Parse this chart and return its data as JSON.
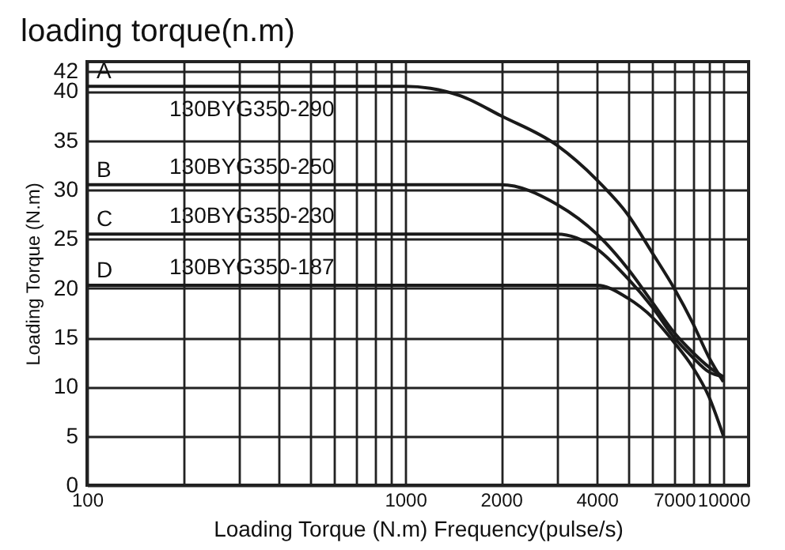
{
  "chart_data": {
    "type": "line",
    "title": "loading torque(n.m)",
    "xlabel": "Loading Torque (N.m)   Frequency(pulse/s)",
    "ylabel": "Loading Torque (N.m)",
    "log": "x",
    "grid": true,
    "legend": false,
    "marker": "none",
    "line_style": "solid",
    "xlim": [
      100,
      12000
    ],
    "ylim": [
      0,
      43
    ],
    "xticks": [
      100,
      {
        "value": 200,
        "label": null
      },
      {
        "value": 300,
        "label": null
      },
      {
        "value": 400,
        "label": null
      },
      {
        "value": 500,
        "label": null
      },
      {
        "value": 600,
        "label": null
      },
      {
        "value": 700,
        "label": null
      },
      {
        "value": 800,
        "label": null
      },
      {
        "value": 900,
        "label": null
      },
      1000,
      2000,
      {
        "value": 3000,
        "label": null
      },
      4000,
      {
        "value": 5000,
        "label": null
      },
      {
        "value": 6000,
        "label": null
      },
      7000,
      {
        "value": 8000,
        "label": null
      },
      {
        "value": 9000,
        "label": null
      },
      10000
    ],
    "yticks": [
      0,
      5,
      10,
      15,
      20,
      25,
      30,
      35,
      40,
      42
    ],
    "x": [
      100,
      1000,
      1200,
      1500,
      2000,
      3000,
      4000,
      5000,
      6000,
      7000,
      8000,
      9000,
      10000
    ],
    "series": [
      {
        "name": "A",
        "color": "#1a1a1a",
        "values": [
          40.5,
          40.5,
          40.3,
          39.5,
          37.5,
          34.5,
          31,
          27.5,
          23.5,
          20,
          16.5,
          13,
          10.5
        ]
      },
      {
        "name": "B",
        "color": "#1a1a1a",
        "values": [
          30.5,
          30.5,
          30.5,
          30.5,
          30.5,
          28.5,
          25.5,
          22,
          18.5,
          15.5,
          13.5,
          12,
          11
        ]
      },
      {
        "name": "C",
        "color": "#1a1a1a",
        "values": [
          25.5,
          25.5,
          25.5,
          25.5,
          25.5,
          25.5,
          24,
          21,
          18,
          15,
          13,
          11.5,
          11
        ]
      },
      {
        "name": "D",
        "color": "#1a1a1a",
        "values": [
          20.3,
          20.3,
          20.3,
          20.3,
          20.3,
          20.3,
          20.3,
          19,
          17,
          14.5,
          12,
          9,
          5
        ]
      }
    ],
    "annotations": [
      "130BYG350-290",
      "130BYG350-250",
      "130BYG350-230",
      "130BYG350-187"
    ]
  }
}
